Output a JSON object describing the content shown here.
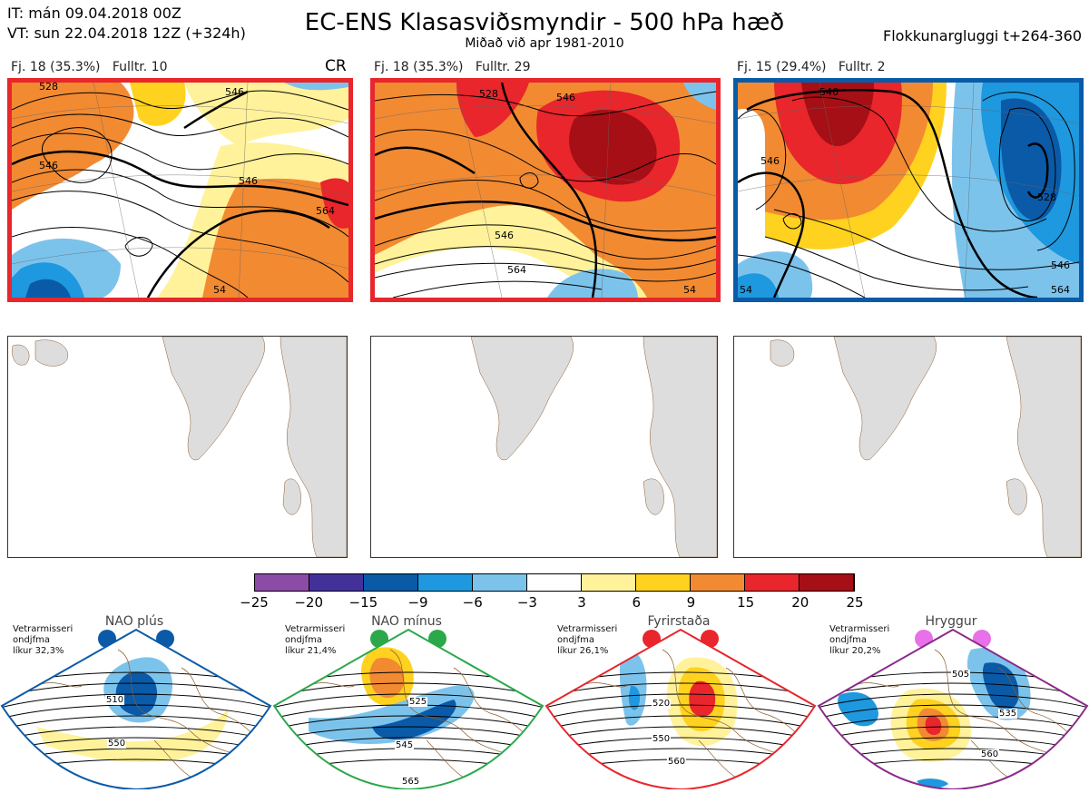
{
  "header": {
    "init_time": "IT: mán 09.04.2018 00Z",
    "valid_time": "VT: sun 22.04.2018 12Z  (+324h)",
    "title": "EC-ENS Klasasviðsmyndir - 500 hPa hæð",
    "subtitle": "Miðað við apr 1981-2010",
    "window": "Flokkunargluggi t+264-360"
  },
  "clusters": [
    {
      "label": "Fj. 18 (35.3%)",
      "rep": "Fulltr. 10",
      "tag": "CR",
      "frame_color": "#e8262b"
    },
    {
      "label": "Fj. 18 (35.3%)",
      "rep": "Fulltr. 29",
      "tag": "",
      "frame_color": "#e8262b"
    },
    {
      "label": "Fj. 15 (29.4%)",
      "rep": "Fulltr. 2",
      "tag": "",
      "frame_color": "#0a5aa8"
    }
  ],
  "contour_labels": {
    "p1": [
      "528",
      "546",
      "546",
      "564",
      "546",
      "54"
    ],
    "p2": [
      "528",
      "546",
      "546",
      "564",
      "54"
    ],
    "p3": [
      "546",
      "546",
      "528",
      "546",
      "564",
      "54"
    ]
  },
  "colorbar": {
    "ticks": [
      "−25",
      "−20",
      "−15",
      "−9",
      "−6",
      "−3",
      "3",
      "6",
      "9",
      "15",
      "20",
      "25"
    ],
    "colors": [
      "#8b4ca6",
      "#43319a",
      "#0a5aa8",
      "#1e98de",
      "#7cc3ec",
      "#ffffff",
      "#fff29a",
      "#ffd21f",
      "#f28a32",
      "#e8262b",
      "#a50f15"
    ]
  },
  "regimes": [
    {
      "name": "NAO plús",
      "stat_lines": [
        "Vetrarmisseri",
        "ondjfma",
        "líkur 32,3%"
      ],
      "color": "#0a5aa8",
      "dot": "#0a5aa8",
      "labels": [
        "510",
        "550"
      ]
    },
    {
      "name": "NAO mínus",
      "stat_lines": [
        "Vetrarmisseri",
        "ondjfma",
        "líkur 21,4%"
      ],
      "color": "#2aa84a",
      "dot": "#2aa84a",
      "labels": [
        "525",
        "545",
        "565"
      ]
    },
    {
      "name": "Fyrirstaða",
      "stat_lines": [
        "Vetrarmisseri",
        "ondjfma",
        "líkur 26,1%"
      ],
      "color": "#e8262b",
      "dot": "#e8262b",
      "labels": [
        "520",
        "550",
        "560"
      ]
    },
    {
      "name": "Hryggur",
      "stat_lines": [
        "Vetrarmisseri",
        "ondjfma",
        "líkur 20,2%"
      ],
      "color": "#8a2b8a",
      "dot": "#e870e8",
      "labels": [
        "505",
        "535",
        "560"
      ]
    }
  ]
}
